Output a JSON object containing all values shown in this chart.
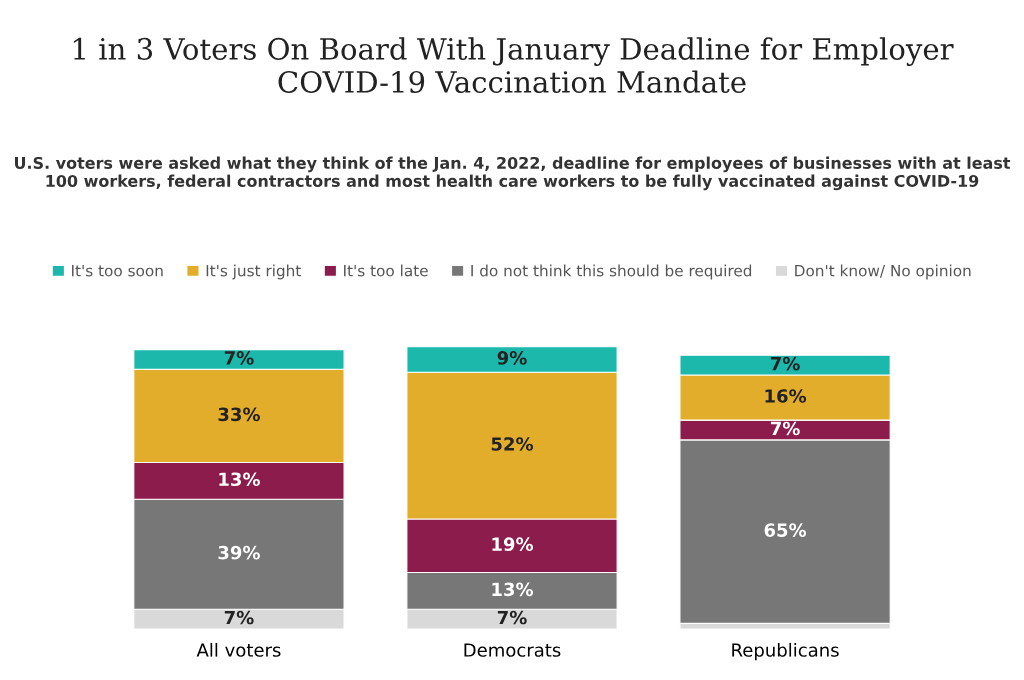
{
  "chart_data": {
    "type": "bar",
    "stacked": true,
    "title": "1 in 3 Voters On Board With January Deadline for Employer COVID-19 Vaccination Mandate",
    "subtitle": "U.S. voters were asked what they think of the Jan. 4, 2022, deadline for employees of businesses with at least 100 workers, federal contractors and most health care workers to be fully vaccinated against COVID-19",
    "categories": [
      "All voters",
      "Democrats",
      "Republicans"
    ],
    "legend": "top",
    "series": [
      {
        "name": "Don't know/ No opinion",
        "color": "#d9d9d9",
        "values": [
          7,
          7,
          2
        ],
        "value_labels": [
          "7%",
          "7%",
          null
        ]
      },
      {
        "name": "I do not think this should be required",
        "color": "#777777",
        "values": [
          39,
          13,
          65
        ],
        "value_labels": [
          "39%",
          "13%",
          "65%"
        ]
      },
      {
        "name": "It's too late",
        "color": "#8c1c4b",
        "values": [
          13,
          19,
          7
        ],
        "value_labels": [
          "13%",
          "19%",
          "7%"
        ]
      },
      {
        "name": "It's just right",
        "color": "#e3ad2c",
        "values": [
          33,
          52,
          16
        ],
        "value_labels": [
          "33%",
          "52%",
          "16%"
        ]
      },
      {
        "name": "It's too soon",
        "color": "#1cb8ab",
        "values": [
          7,
          9,
          7
        ],
        "value_labels": [
          "7%",
          "9%",
          "7%"
        ]
      }
    ]
  }
}
